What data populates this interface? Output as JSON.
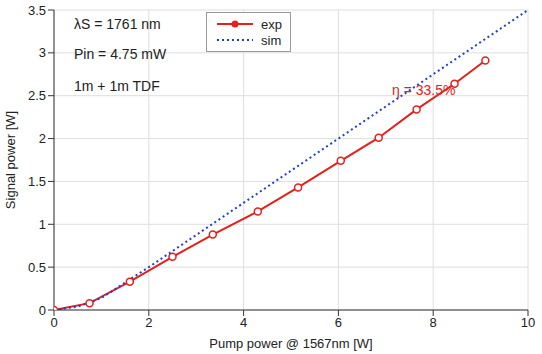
{
  "chart_data": {
    "type": "line",
    "x_label": "Pump power @ 1567nm [W]",
    "y_label": "Signal power [W]",
    "xlim": [
      0,
      10
    ],
    "xticks": [
      0,
      2,
      4,
      6,
      8,
      10
    ],
    "ylim": [
      0,
      3.5
    ],
    "yticks": [
      0,
      0.5,
      1,
      1.5,
      2,
      2.5,
      3,
      3.5
    ],
    "grid": true,
    "legend": "top",
    "series": [
      {
        "name": "exp",
        "color": "#e3201b",
        "marker": "circle",
        "line_style": "solid",
        "x": [
          0,
          0.75,
          1.6,
          2.5,
          3.35,
          4.3,
          5.15,
          6.05,
          6.85,
          7.65,
          8.45,
          9.1
        ],
        "values": [
          0,
          0.08,
          0.33,
          0.62,
          0.88,
          1.15,
          1.43,
          1.74,
          2.01,
          2.34,
          2.64,
          2.91
        ]
      },
      {
        "name": "sim",
        "color": "#1f3fd0",
        "marker": "none",
        "line_style": "dotted",
        "x": [
          0,
          0.5,
          1,
          2,
          4,
          6,
          8,
          10
        ],
        "values": [
          0,
          0.04,
          0.14,
          0.5,
          1.25,
          2.0,
          2.75,
          3.5
        ]
      }
    ],
    "annotations": [
      {
        "text": "λS = 1761 nm"
      },
      {
        "text": "Pin = 4.75 mW"
      },
      {
        "text": "1m + 1m TDF"
      },
      {
        "text": "η = 33.5%",
        "color": "#e3201b"
      }
    ]
  }
}
